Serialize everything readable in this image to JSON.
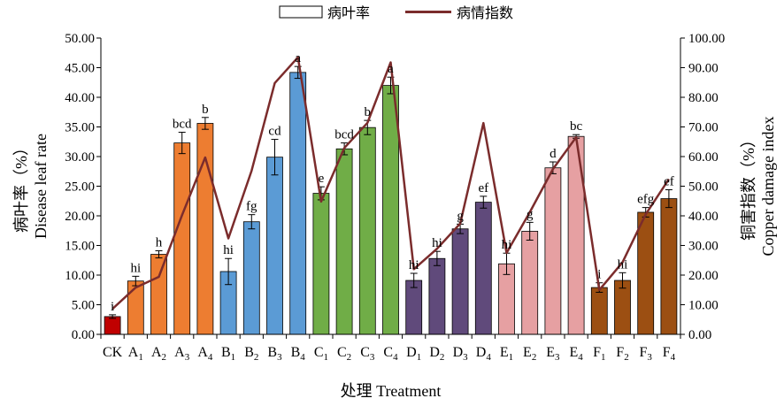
{
  "chart_data": {
    "type": "bar",
    "categories": [
      "CK",
      "A1",
      "A2",
      "A3",
      "A4",
      "B1",
      "B2",
      "B3",
      "B4",
      "C1",
      "C2",
      "C3",
      "C4",
      "D1",
      "D2",
      "D3",
      "D4",
      "E1",
      "E2",
      "E3",
      "E4",
      "F1",
      "F2",
      "F3",
      "F4"
    ],
    "category_labels": [
      {
        "base": "CK",
        "sub": ""
      },
      {
        "base": "A",
        "sub": "1"
      },
      {
        "base": "A",
        "sub": "2"
      },
      {
        "base": "A",
        "sub": "3"
      },
      {
        "base": "A",
        "sub": "4"
      },
      {
        "base": "B",
        "sub": "1"
      },
      {
        "base": "B",
        "sub": "2"
      },
      {
        "base": "B",
        "sub": "3"
      },
      {
        "base": "B",
        "sub": "4"
      },
      {
        "base": "C",
        "sub": "1"
      },
      {
        "base": "C",
        "sub": "2"
      },
      {
        "base": "C",
        "sub": "3"
      },
      {
        "base": "C",
        "sub": "4"
      },
      {
        "base": "D",
        "sub": "1"
      },
      {
        "base": "D",
        "sub": "2"
      },
      {
        "base": "D",
        "sub": "3"
      },
      {
        "base": "D",
        "sub": "4"
      },
      {
        "base": "E",
        "sub": "1"
      },
      {
        "base": "E",
        "sub": "2"
      },
      {
        "base": "E",
        "sub": "3"
      },
      {
        "base": "E",
        "sub": "4"
      },
      {
        "base": "F",
        "sub": "1"
      },
      {
        "base": "F",
        "sub": "2"
      },
      {
        "base": "F",
        "sub": "3"
      },
      {
        "base": "F",
        "sub": "4"
      }
    ],
    "series": [
      {
        "name": "病叶率",
        "type": "bar",
        "axis": "left",
        "values": [
          3.0,
          9.0,
          13.5,
          32.3,
          35.6,
          10.6,
          19.0,
          29.9,
          44.2,
          23.8,
          31.3,
          34.9,
          42.0,
          9.1,
          12.8,
          17.8,
          22.3,
          11.9,
          17.4,
          28.1,
          33.4,
          7.9,
          9.1,
          20.6,
          22.9
        ],
        "errors": [
          0.3,
          0.8,
          0.6,
          1.8,
          1.0,
          2.2,
          1.2,
          3.0,
          1.0,
          1.1,
          1.0,
          1.2,
          1.4,
          1.2,
          1.2,
          0.8,
          1.0,
          1.8,
          1.5,
          1.0,
          0.3,
          0.8,
          1.3,
          0.8,
          1.5
        ],
        "significance": [
          "i",
          "hi",
          "h",
          "bcd",
          "b",
          "hi",
          "fg",
          "cd",
          "a",
          "e",
          "bcd",
          "b",
          "a",
          "hi",
          "hi",
          "g",
          "ef",
          "hi",
          "g",
          "d",
          "bc",
          "i",
          "hi",
          "efg",
          "ef"
        ],
        "colors": [
          "#c00000",
          "#ed7d31",
          "#ed7d31",
          "#ed7d31",
          "#ed7d31",
          "#5b9bd5",
          "#5b9bd5",
          "#5b9bd5",
          "#5b9bd5",
          "#70ad47",
          "#70ad47",
          "#70ad47",
          "#70ad47",
          "#604a7b",
          "#604a7b",
          "#604a7b",
          "#604a7b",
          "#e6a0a2",
          "#e6a0a2",
          "#e6a0a2",
          "#e6a0a2",
          "#9c4f12",
          "#9c4f12",
          "#9c4f12",
          "#9c4f12"
        ]
      },
      {
        "name": "病情指数",
        "type": "line",
        "axis": "right",
        "color": "#7b2c2c",
        "values": [
          8.6,
          15.8,
          19.4,
          40.2,
          59.7,
          32.4,
          55.2,
          84.8,
          93.5,
          44.8,
          62.9,
          71.4,
          91.8,
          22.0,
          28.9,
          37.4,
          71.3,
          27.5,
          41.2,
          55.8,
          66.5,
          15.0,
          24.3,
          40.5,
          52.4
        ]
      }
    ],
    "left_axis": {
      "label_cn": "病叶率（%）",
      "label_en": "Disease leaf rate",
      "ylim": [
        0,
        50
      ],
      "ticks": [
        "0.00",
        "5.00",
        "10.00",
        "15.00",
        "20.00",
        "25.00",
        "30.00",
        "35.00",
        "40.00",
        "45.00",
        "50.00"
      ]
    },
    "right_axis": {
      "label_cn": "铜害指数（%）",
      "label_en": "Copper damage index",
      "ylim": [
        0,
        100
      ],
      "ticks": [
        "0.00",
        "10.00",
        "20.00",
        "30.00",
        "40.00",
        "50.00",
        "60.00",
        "70.00",
        "80.00",
        "90.00",
        "100.00"
      ]
    },
    "xlabel": "处理 Treatment",
    "legend": {
      "placement": "top-center",
      "items": [
        "病叶率",
        "病情指数"
      ]
    }
  }
}
